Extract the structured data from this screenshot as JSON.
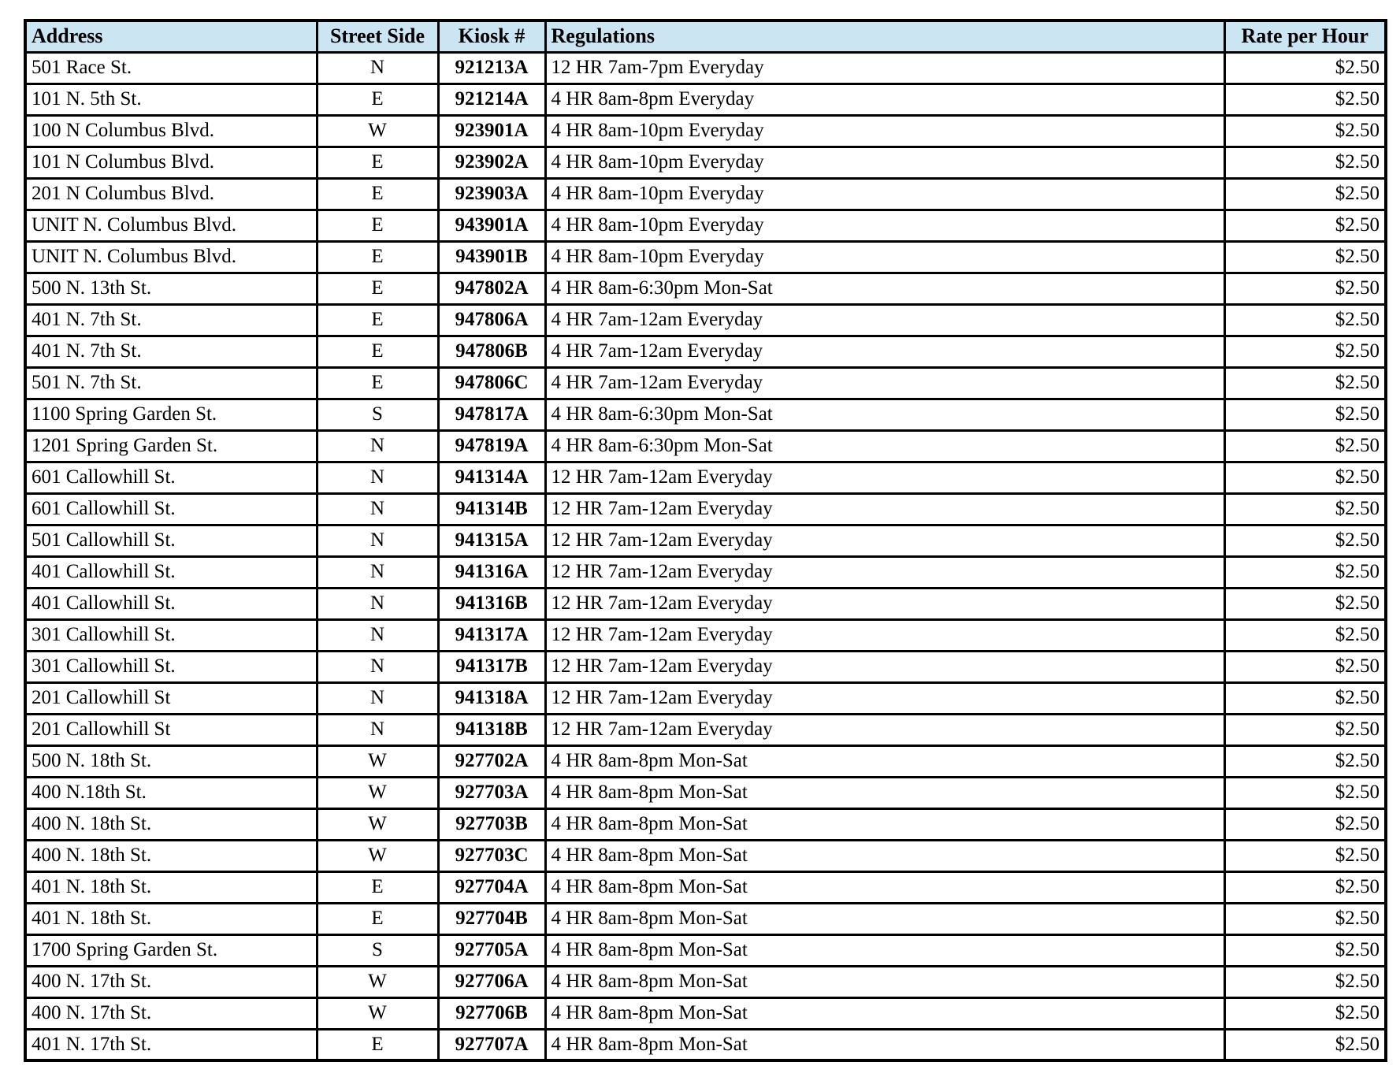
{
  "table": {
    "header_bg": "#cbe5f3",
    "border_color": "#000000",
    "columns": [
      {
        "key": "address",
        "label": "Address"
      },
      {
        "key": "side",
        "label": "Street Side"
      },
      {
        "key": "kiosk",
        "label": "Kiosk #"
      },
      {
        "key": "regulations",
        "label": "Regulations"
      },
      {
        "key": "rate",
        "label": "Rate per Hour"
      }
    ],
    "rows": [
      [
        "501 Race St.",
        "N",
        "921213A",
        "12 HR 7am-7pm Everyday",
        "$2.50"
      ],
      [
        "101 N. 5th St.",
        "E",
        "921214A",
        "4 HR 8am-8pm Everyday",
        "$2.50"
      ],
      [
        "100 N Columbus Blvd.",
        "W",
        "923901A",
        "4 HR 8am-10pm Everyday",
        "$2.50"
      ],
      [
        "101 N Columbus Blvd.",
        "E",
        "923902A",
        "4 HR 8am-10pm Everyday",
        "$2.50"
      ],
      [
        "201 N Columbus Blvd.",
        "E",
        "923903A",
        "4 HR 8am-10pm Everyday",
        "$2.50"
      ],
      [
        "UNIT N. Columbus Blvd.",
        "E",
        "943901A",
        "4 HR 8am-10pm Everyday",
        "$2.50"
      ],
      [
        "UNIT N. Columbus Blvd.",
        "E",
        "943901B",
        "4 HR 8am-10pm Everyday",
        "$2.50"
      ],
      [
        "500 N. 13th St.",
        "E",
        "947802A",
        "4 HR 8am-6:30pm Mon-Sat",
        "$2.50"
      ],
      [
        "401 N. 7th St.",
        "E",
        "947806A",
        "4 HR 7am-12am Everyday",
        "$2.50"
      ],
      [
        "401 N. 7th St.",
        "E",
        "947806B",
        "4 HR 7am-12am Everyday",
        "$2.50"
      ],
      [
        "501 N. 7th St.",
        "E",
        "947806C",
        "4 HR 7am-12am Everyday",
        "$2.50"
      ],
      [
        "1100 Spring Garden St.",
        "S",
        "947817A",
        "4 HR 8am-6:30pm Mon-Sat",
        "$2.50"
      ],
      [
        "1201 Spring Garden St.",
        "N",
        "947819A",
        "4 HR 8am-6:30pm Mon-Sat",
        "$2.50"
      ],
      [
        "601 Callowhill St.",
        "N",
        "941314A",
        "12 HR 7am-12am Everyday",
        "$2.50"
      ],
      [
        "601 Callowhill St.",
        "N",
        "941314B",
        "12 HR 7am-12am Everyday",
        "$2.50"
      ],
      [
        "501 Callowhill St.",
        "N",
        "941315A",
        "12 HR 7am-12am Everyday",
        "$2.50"
      ],
      [
        "401 Callowhill St.",
        "N",
        "941316A",
        "12 HR 7am-12am Everyday",
        "$2.50"
      ],
      [
        "401 Callowhill St.",
        "N",
        "941316B",
        "12 HR 7am-12am Everyday",
        "$2.50"
      ],
      [
        "301 Callowhill St.",
        "N",
        "941317A",
        "12 HR 7am-12am Everyday",
        "$2.50"
      ],
      [
        "301 Callowhill St.",
        "N",
        "941317B",
        "12 HR 7am-12am Everyday",
        "$2.50"
      ],
      [
        "201 Callowhill St",
        "N",
        "941318A",
        "12 HR 7am-12am Everyday",
        "$2.50"
      ],
      [
        "201 Callowhill St",
        "N",
        "941318B",
        "12 HR 7am-12am Everyday",
        "$2.50"
      ],
      [
        "500 N. 18th St.",
        "W",
        "927702A",
        "4 HR 8am-8pm Mon-Sat",
        "$2.50"
      ],
      [
        "400 N.18th St.",
        "W",
        "927703A",
        "4 HR 8am-8pm Mon-Sat",
        "$2.50"
      ],
      [
        "400 N. 18th St.",
        "W",
        "927703B",
        "4 HR 8am-8pm Mon-Sat",
        "$2.50"
      ],
      [
        "400 N. 18th St.",
        "W",
        "927703C",
        "4 HR 8am-8pm Mon-Sat",
        "$2.50"
      ],
      [
        "401 N. 18th St.",
        "E",
        "927704A",
        "4 HR 8am-8pm Mon-Sat",
        "$2.50"
      ],
      [
        "401 N. 18th St.",
        "E",
        "927704B",
        "4 HR 8am-8pm Mon-Sat",
        "$2.50"
      ],
      [
        "1700 Spring Garden St.",
        "S",
        "927705A",
        "4 HR 8am-8pm Mon-Sat",
        "$2.50"
      ],
      [
        "400 N. 17th St.",
        "W",
        "927706A",
        "4 HR 8am-8pm Mon-Sat",
        "$2.50"
      ],
      [
        "400 N. 17th St.",
        "W",
        "927706B",
        "4 HR 8am-8pm Mon-Sat",
        "$2.50"
      ],
      [
        "401 N. 17th St.",
        "E",
        "927707A",
        "4 HR 8am-8pm Mon-Sat",
        "$2.50"
      ]
    ]
  }
}
